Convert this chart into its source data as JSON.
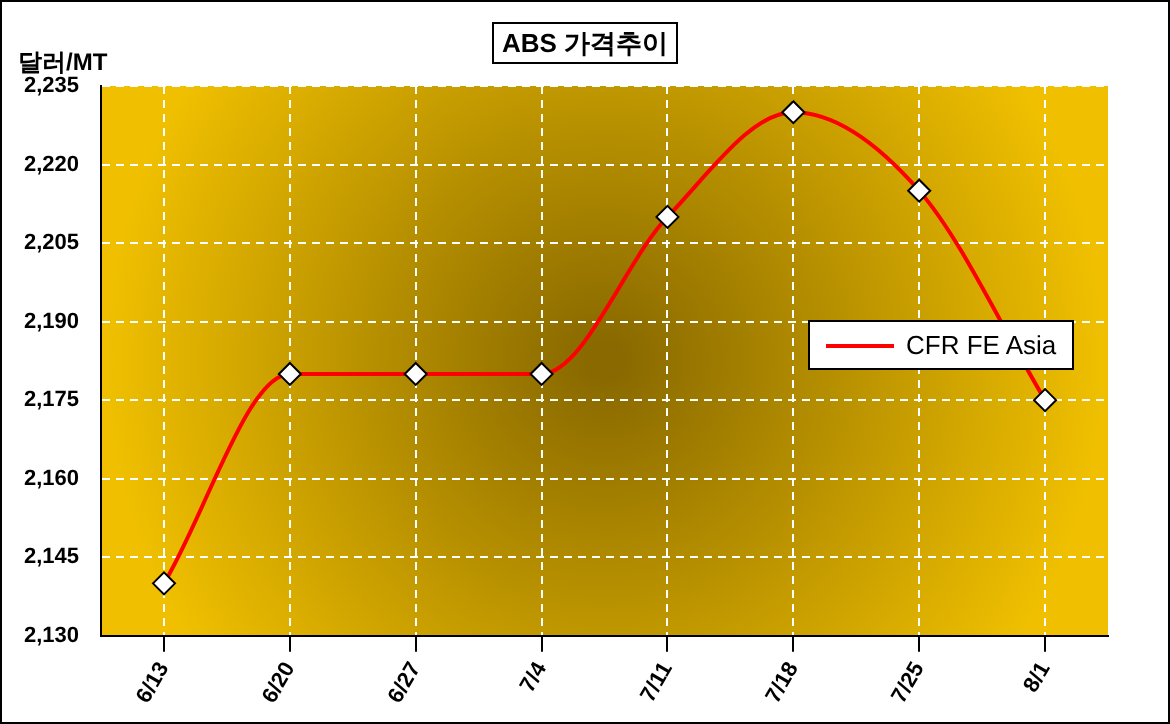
{
  "chart_data": {
    "type": "line",
    "title": "ABS 가격추이",
    "ylabel": "달러/MT",
    "categories": [
      "6/13",
      "6/20",
      "6/27",
      "7/4",
      "7/11",
      "7/18",
      "7/25",
      "8/1"
    ],
    "series": [
      {
        "name": "CFR FE Asia",
        "color": "#ff0000",
        "values": [
          2140,
          2180,
          2180,
          2180,
          2210,
          2230,
          2215,
          2175
        ]
      }
    ],
    "ylim": [
      2130,
      2235
    ],
    "yticks": [
      {
        "value": 2130,
        "label": "2,130"
      },
      {
        "value": 2145,
        "label": "2,145"
      },
      {
        "value": 2160,
        "label": "2,160"
      },
      {
        "value": 2175,
        "label": "2,175"
      },
      {
        "value": 2190,
        "label": "2,190"
      },
      {
        "value": 2205,
        "label": "2,205"
      },
      {
        "value": 2220,
        "label": "2,220"
      },
      {
        "value": 2235,
        "label": "2,235"
      }
    ],
    "grid": true,
    "legend": "right",
    "marker": "diamond",
    "line_style": "solid"
  }
}
